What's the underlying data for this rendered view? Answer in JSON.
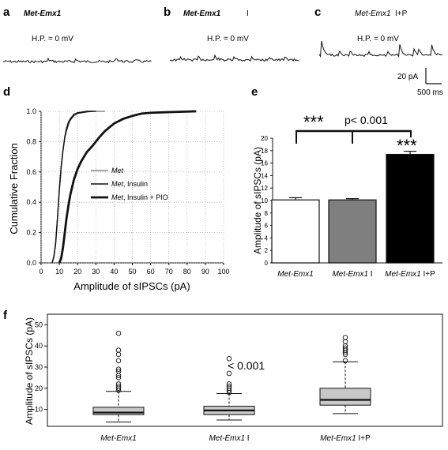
{
  "traces": [
    {
      "panel": "a",
      "title": "Met-Emx1",
      "treatment": "",
      "hp": "H.P. = 0 mV"
    },
    {
      "panel": "b",
      "title": "Met-Emx1",
      "treatment": "I",
      "hp": "H.P. = 0 mV"
    },
    {
      "panel": "c",
      "title": "Met-Emx1",
      "treatment": "I+P",
      "hp": "H.P. = 0 mV"
    }
  ],
  "scalebar": {
    "current": "20 pA",
    "time": "500 ms"
  },
  "chart_data": [
    {
      "panel": "d",
      "type": "line",
      "xlabel": "Amplitude of sIPSCs (pA)",
      "ylabel": "Cumulative Fraction",
      "xlim": [
        0,
        100
      ],
      "ylim": [
        0,
        1
      ],
      "xticks": [
        "0",
        "10",
        "20",
        "30",
        "40",
        "50",
        "60",
        "70",
        "80",
        "90",
        "100"
      ],
      "yticks": [
        "0.0",
        "0.2",
        "0.4",
        "0.6",
        "0.8",
        "1.0"
      ],
      "legend": {
        "placement": "center-right",
        "entries": [
          {
            "name": "Met",
            "suffix": ""
          },
          {
            "name": "Met",
            "suffix": ", Insulin"
          },
          {
            "name": "Met",
            "suffix": ", Insulin + PIO"
          }
        ]
      },
      "series": [
        {
          "name": "Met",
          "x": [
            6,
            7,
            8,
            9,
            10,
            11,
            12,
            13,
            14,
            15,
            16,
            18,
            20,
            25,
            30,
            35
          ],
          "y": [
            0,
            0.05,
            0.15,
            0.32,
            0.5,
            0.65,
            0.75,
            0.82,
            0.87,
            0.91,
            0.94,
            0.97,
            0.985,
            0.995,
            1.0,
            1.0
          ]
        },
        {
          "name": "Met, Insulin",
          "x": [
            6,
            7,
            8,
            9,
            10,
            11,
            12,
            13,
            14,
            15,
            16,
            18,
            20,
            25,
            30
          ],
          "y": [
            0,
            0.04,
            0.13,
            0.3,
            0.48,
            0.63,
            0.74,
            0.83,
            0.89,
            0.93,
            0.95,
            0.98,
            0.99,
            1.0,
            1.0
          ]
        },
        {
          "name": "Met, Insulin + PIO",
          "x": [
            10,
            11,
            12,
            13,
            14,
            15,
            16,
            17,
            18,
            20,
            22,
            25,
            28,
            30,
            32,
            35,
            38,
            40,
            45,
            50,
            55,
            60,
            70,
            85
          ],
          "y": [
            0,
            0.03,
            0.1,
            0.2,
            0.3,
            0.38,
            0.45,
            0.5,
            0.55,
            0.62,
            0.67,
            0.73,
            0.77,
            0.8,
            0.83,
            0.87,
            0.9,
            0.92,
            0.95,
            0.97,
            0.985,
            0.99,
            0.995,
            1.0
          ]
        }
      ]
    },
    {
      "panel": "e",
      "type": "bar",
      "ylabel": "Amplitude of sIPSCs (pA)",
      "ylim": [
        0,
        20
      ],
      "yticks": [
        "0",
        "2",
        "4",
        "6",
        "8",
        "10",
        "12",
        "14",
        "16",
        "18",
        "20"
      ],
      "categories": [
        {
          "name": "Met-Emx1",
          "treatment": ""
        },
        {
          "name": "Met-Emx1",
          "treatment": "I"
        },
        {
          "name": "Met-Emx1",
          "treatment": "I+P"
        }
      ],
      "values": [
        10.1,
        10.1,
        17.4
      ],
      "errors": [
        0.35,
        0.2,
        0.5
      ],
      "colors": [
        "#ffffff",
        "#7f7f7f",
        "#000000"
      ],
      "annotations": {
        "stars_left": "***",
        "pvalue": "p< 0.001",
        "stars_bar": "***"
      }
    },
    {
      "panel": "f",
      "type": "box",
      "ylabel": "Amplitude of sIPSCs (pA)",
      "ylim": [
        2,
        55
      ],
      "yticks": [
        "10",
        "20",
        "30",
        "40",
        "50"
      ],
      "categories": [
        {
          "name": "Met-Emx1",
          "treatment": ""
        },
        {
          "name": "Met-Emx1",
          "treatment": "I"
        },
        {
          "name": "Met-Emx1",
          "treatment": "I+P"
        }
      ],
      "boxes": [
        {
          "whislo": 4,
          "q1": 7.5,
          "med": 8.5,
          "q3": 11,
          "whishi": 18.5,
          "fliers": [
            19,
            20,
            21,
            22,
            25,
            26,
            28,
            29,
            33,
            36,
            38,
            46
          ]
        },
        {
          "whislo": 5,
          "q1": 7.5,
          "med": 9.5,
          "q3": 11.5,
          "whishi": 17.5,
          "fliers": [
            18,
            19,
            20,
            21,
            22,
            27,
            34
          ]
        },
        {
          "whislo": 8,
          "q1": 12,
          "med": 14.5,
          "q3": 20,
          "whishi": 32.5,
          "fliers": [
            33,
            36,
            37,
            38,
            39,
            40,
            42,
            44
          ]
        }
      ],
      "annotation": "< 0.001"
    }
  ]
}
